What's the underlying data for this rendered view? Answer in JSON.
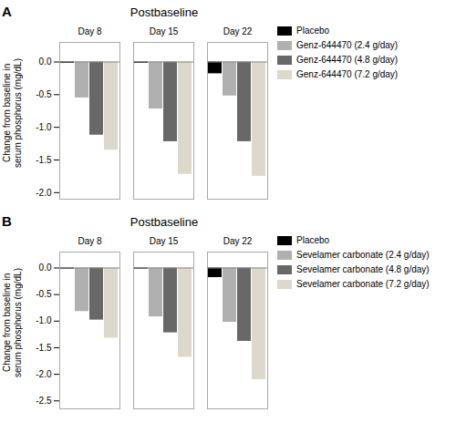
{
  "chart_data": [
    {
      "type": "bar",
      "title": "Postbaseline",
      "annotations": [
        {
          "text": "A"
        }
      ],
      "categories": [
        "Day 8",
        "Day 15",
        "Day 22"
      ],
      "series": [
        {
          "name": "Placebo",
          "color": "#000000",
          "values": [
            -0.02,
            -0.02,
            -0.18
          ]
        },
        {
          "name": "Genz-644470 (2.4 g/day)",
          "color": "#b0b0b0",
          "values": [
            -0.55,
            -0.72,
            -0.52
          ]
        },
        {
          "name": "Genz-644470 (4.8 g/day)",
          "color": "#686868",
          "values": [
            -1.12,
            -1.22,
            -1.22
          ]
        },
        {
          "name": "Genz-644470 (7.2 g/day)",
          "color": "#dcd8cc",
          "values": [
            -1.35,
            -1.72,
            -1.75
          ]
        }
      ],
      "ylim": [
        -2.1,
        0.3
      ],
      "yticks": [
        {
          "value": 0.0,
          "label": "0.0"
        },
        -0.5,
        {
          "value": -1.0,
          "label": "-1.0"
        },
        -1.5,
        {
          "value": -2.0,
          "label": "-2.0"
        }
      ],
      "ylabel": "Change from baseline in\nserum phosphorus (mg/dL)",
      "grid": false,
      "legend": "right"
    },
    {
      "type": "bar",
      "title": "Postbaseline",
      "annotations": [
        {
          "text": "B"
        }
      ],
      "categories": [
        "Day 8",
        "Day 15",
        "Day 22"
      ],
      "series": [
        {
          "name": "Placebo",
          "color": "#000000",
          "values": [
            -0.02,
            -0.02,
            -0.18
          ]
        },
        {
          "name": "Sevelamer carbonate (2.4 g/day)",
          "color": "#b0b0b0",
          "values": [
            -0.82,
            -0.92,
            -1.02
          ]
        },
        {
          "name": "Sevelamer carbonate (4.8 g/day)",
          "color": "#686868",
          "values": [
            -0.98,
            -1.22,
            -1.38
          ]
        },
        {
          "name": "Sevelamer carbonate (7.2 g/day)",
          "color": "#dcd8cc",
          "values": [
            -1.32,
            -1.68,
            -2.1
          ]
        }
      ],
      "ylim": [
        -2.65,
        0.3
      ],
      "yticks": [
        {
          "value": 0.0,
          "label": "0.0"
        },
        -0.5,
        {
          "value": -1.0,
          "label": "-1.0"
        },
        -1.5,
        {
          "value": -2.0,
          "label": "-2.0"
        },
        -2.5
      ],
      "ylabel": "Change from baseline in\nserum phosphorus (mg/dL)",
      "grid": false,
      "legend": "right"
    }
  ]
}
